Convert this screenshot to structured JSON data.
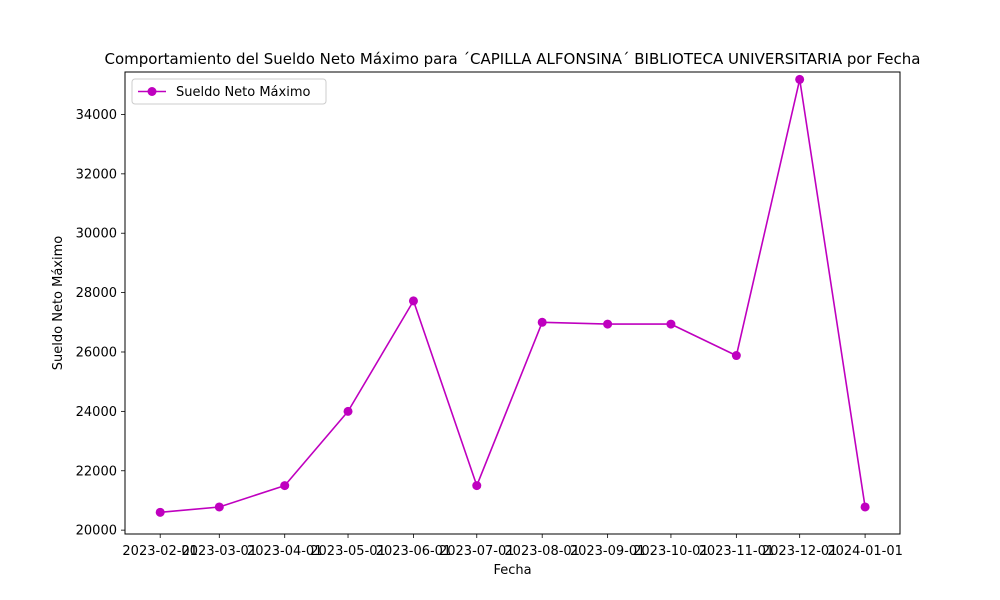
{
  "chart_data": {
    "type": "line",
    "title": "Comportamiento del Sueldo Neto Máximo para ´CAPILLA ALFONSINA´ BIBLIOTECA UNIVERSITARIA por Fecha",
    "xlabel": "Fecha",
    "ylabel": "Sueldo Neto Máximo",
    "x": [
      "2023-02-01",
      "2023-03-01",
      "2023-04-01",
      "2023-05-01",
      "2023-06-01",
      "2023-07-01",
      "2023-08-01",
      "2023-09-01",
      "2023-10-01",
      "2023-11-01",
      "2023-12-01",
      "2024-01-01"
    ],
    "x_tick_labels": [
      "2023-02-01",
      "2023-03-01",
      "2023-04-01",
      "2023-05-01",
      "2023-06-01",
      "2023-07-01",
      "2023-08-01",
      "2023-09-01",
      "2023-10-01",
      "2023-11-01",
      "2023-12-01",
      "2024-01-01"
    ],
    "y_ticks": [
      20000,
      22000,
      24000,
      26000,
      28000,
      30000,
      32000,
      34000
    ],
    "y_tick_labels": [
      "20000",
      "22000",
      "24000",
      "26000",
      "28000",
      "30000",
      "32000",
      "34000"
    ],
    "ylim": [
      19870,
      35430
    ],
    "series": [
      {
        "name": "Sueldo Neto Máximo",
        "color": "#bf00bf",
        "marker": "circle",
        "values": [
          20600,
          20780,
          21500,
          24000,
          27720,
          21500,
          27000,
          26940,
          26940,
          25880,
          35180,
          20780
        ]
      }
    ],
    "legend": {
      "placement": "top-left",
      "entries": [
        "Sueldo Neto Máximo"
      ]
    },
    "grid": false
  }
}
